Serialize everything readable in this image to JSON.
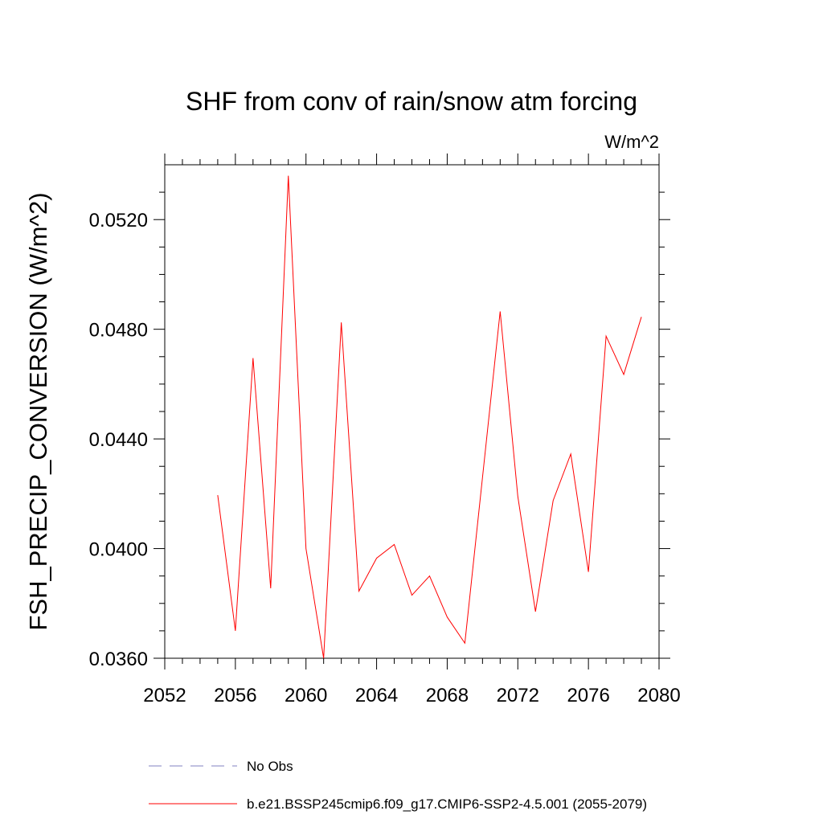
{
  "chart_data": {
    "type": "line",
    "title": "SHF from conv of rain/snow atm forcing",
    "units_label": "W/m^2",
    "xlabel": "",
    "ylabel": "FSH_PRECIP_CONVERSION  (W/m^2)",
    "xlim": [
      2052,
      2080
    ],
    "ylim": [
      0.036,
      0.054
    ],
    "xticks": [
      2052,
      2056,
      2060,
      2064,
      2068,
      2072,
      2076,
      2080
    ],
    "xtick_labels": [
      "2052",
      "2056",
      "2060",
      "2064",
      "2068",
      "2072",
      "2076",
      "2080"
    ],
    "yticks": [
      0.036,
      0.04,
      0.044,
      0.048,
      0.052
    ],
    "ytick_labels": [
      "0.0360",
      "0.0400",
      "0.0440",
      "0.0480",
      "0.0520"
    ],
    "grid": false,
    "legend_position": "bottom",
    "legend": [
      {
        "name": "No Obs",
        "color": "#8080c0",
        "style": "dashed"
      },
      {
        "name": "b.e21.BSSP245cmip6.f09_g17.CMIP6-SSP2-4.5.001 (2055-2079)",
        "color": "#ff0000",
        "style": "solid"
      }
    ],
    "series": [
      {
        "name": "b.e21.BSSP245cmip6.f09_g17.CMIP6-SSP2-4.5.001 (2055-2079)",
        "color": "#ff0000",
        "x": [
          2055,
          2056,
          2057,
          2058,
          2059,
          2060,
          2061,
          2062,
          2063,
          2064,
          2065,
          2066,
          2067,
          2068,
          2069,
          2070,
          2071,
          2072,
          2073,
          2074,
          2075,
          2076,
          2077,
          2078,
          2079
        ],
        "y": [
          0.04195,
          0.037,
          0.04695,
          0.03855,
          0.0536,
          0.04,
          0.036,
          0.04825,
          0.03845,
          0.03965,
          0.04015,
          0.0383,
          0.039,
          0.0375,
          0.03655,
          0.0426,
          0.04865,
          0.0419,
          0.0377,
          0.04175,
          0.04345,
          0.03915,
          0.04775,
          0.04635,
          0.04845
        ]
      }
    ]
  }
}
